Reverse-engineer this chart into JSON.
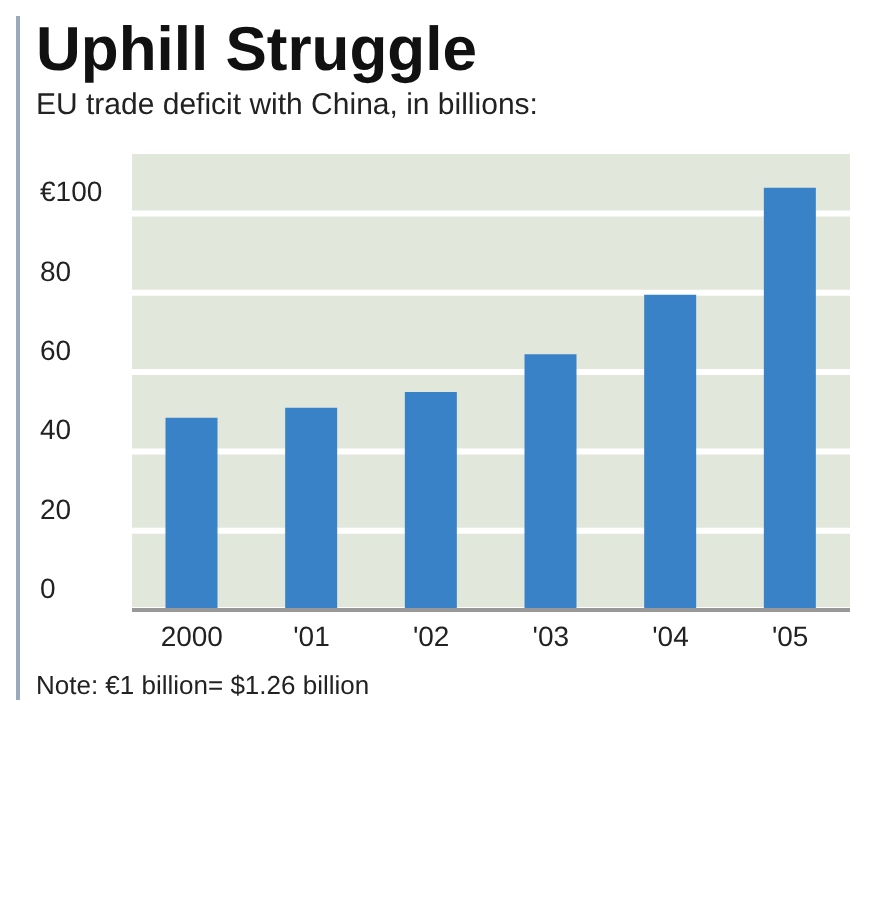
{
  "chart_data": {
    "type": "bar",
    "title": "Uphill Struggle",
    "subtitle": "EU trade deficit with China, in billions:",
    "categories": [
      "2000",
      "'01",
      "'02",
      "'03",
      "'04",
      "'05"
    ],
    "values": [
      48.5,
      51,
      55,
      64.5,
      79.5,
      106.5
    ],
    "color": "#3a82c8",
    "ylim": [
      0,
      115
    ],
    "yticks": [
      {
        "value": 0,
        "label": "0"
      },
      20,
      40,
      60,
      80,
      {
        "value": 100,
        "label": "€100"
      }
    ],
    "grid": "y",
    "annotations": [
      "Note: €1 billion= $1.26 billion"
    ]
  }
}
